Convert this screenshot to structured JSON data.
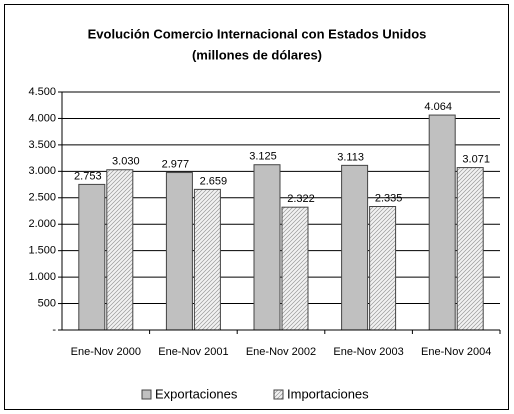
{
  "chart_data": {
    "type": "bar",
    "title": "Evolución Comercio Internacional con Estados Unidos",
    "subtitle": "(millones de dólares)",
    "categories": [
      "Ene-Nov 2000",
      "Ene-Nov 2001",
      "Ene-Nov 2002",
      "Ene-Nov 2003",
      "Ene-Nov 2004"
    ],
    "series": [
      {
        "name": "Exportaciones",
        "color": "#c0c0c0",
        "values": [
          2753,
          2977,
          3125,
          3113,
          4064
        ],
        "value_labels": [
          "2.753",
          "2.977",
          "3.125",
          "3.113",
          "4.064"
        ]
      },
      {
        "name": "Importaciones",
        "color": "#f2f2f2",
        "values": [
          3030,
          2659,
          2322,
          2335,
          3071
        ],
        "value_labels": [
          "3.030",
          "2.659",
          "2.322",
          "2.335",
          "3.071"
        ]
      }
    ],
    "ylim": [
      0,
      4500
    ],
    "yticks": [
      {
        "value": 0,
        "label": "-"
      },
      500,
      {
        "value": 1000,
        "label": "1.000"
      },
      {
        "value": 1500,
        "label": "1.500"
      },
      {
        "value": 2000,
        "label": "2.000"
      },
      {
        "value": 2500,
        "label": "2.500"
      },
      {
        "value": 3000,
        "label": "3.000"
      },
      {
        "value": 3500,
        "label": "3.500"
      },
      {
        "value": 4000,
        "label": "4.000"
      },
      {
        "value": 4500,
        "label": "4.500"
      }
    ],
    "grid": true,
    "legend": "bottom"
  }
}
